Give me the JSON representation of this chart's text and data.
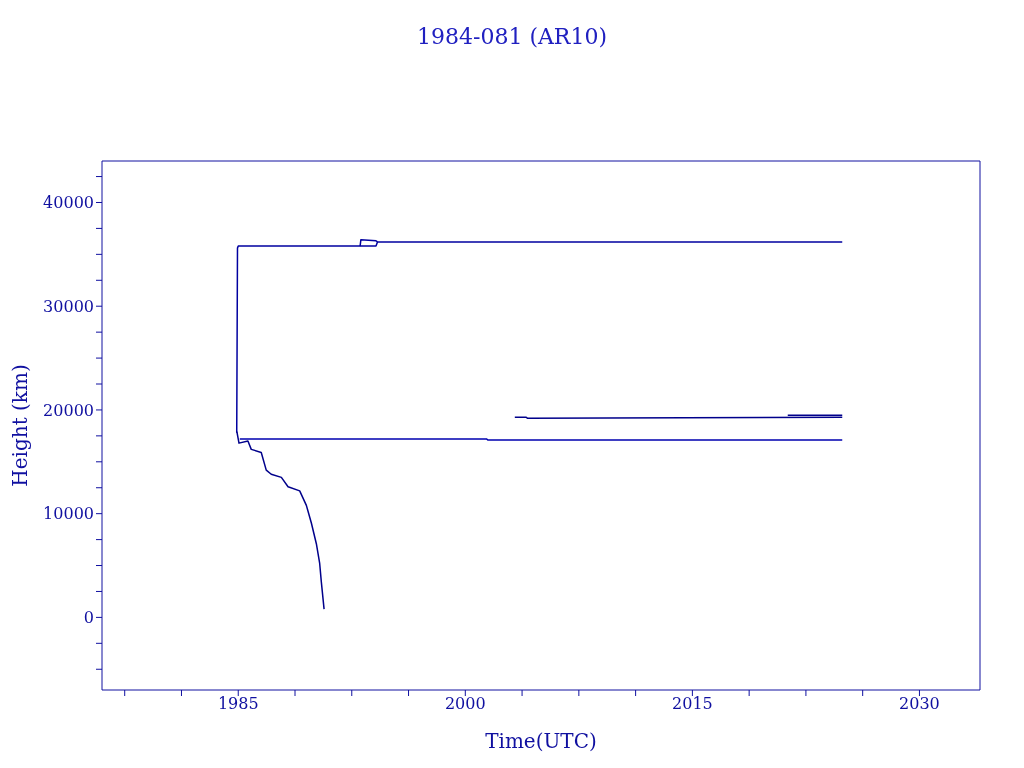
{
  "chart_data": {
    "type": "line",
    "title": "1984-081 (AR10)",
    "xlabel": "Time(UTC)",
    "ylabel": "Height (km)",
    "xlim": [
      1976,
      2034
    ],
    "xticks": [
      {
        "value": 1977.5,
        "label": null
      },
      {
        "value": 1981.25,
        "label": null
      },
      1985,
      {
        "value": 1988.75,
        "label": null
      },
      {
        "value": 1992.5,
        "label": null
      },
      {
        "value": 1996.25,
        "label": null
      },
      2000,
      {
        "value": 2003.75,
        "label": null
      },
      {
        "value": 2007.5,
        "label": null
      },
      {
        "value": 2011.25,
        "label": null
      },
      2015,
      {
        "value": 2018.75,
        "label": null
      },
      {
        "value": 2022.5,
        "label": null
      },
      {
        "value": 2026.25,
        "label": null
      },
      2030
    ],
    "ylim": [
      -7000,
      44000
    ],
    "yticks": [
      {
        "value": -5000,
        "label": null
      },
      {
        "value": -2500,
        "label": null
      },
      0,
      {
        "value": 2500,
        "label": null
      },
      {
        "value": 5000,
        "label": null
      },
      {
        "value": 7500,
        "label": null
      },
      10000,
      {
        "value": 12500,
        "label": null
      },
      {
        "value": 15000,
        "label": null
      },
      {
        "value": 17500,
        "label": null
      },
      20000,
      {
        "value": 22500,
        "label": null
      },
      {
        "value": 25000,
        "label": null
      },
      {
        "value": 27500,
        "label": null
      },
      30000,
      {
        "value": 32500,
        "label": null
      },
      {
        "value": 35000,
        "label": null
      },
      {
        "value": 37500,
        "label": null
      },
      40000,
      {
        "value": 42500,
        "label": null
      }
    ],
    "marker": "none",
    "line_style": "solid",
    "series": [
      {
        "color": "#0000a0",
        "x": [
          1984.9,
          1984.95,
          1985.0,
          1993.1,
          1994.1,
          1994.2,
          2024.9
        ],
        "values": [
          17800,
          35600,
          35800,
          35800,
          35800,
          36200,
          36200
        ]
      },
      {
        "color": "#0000a0",
        "x": [
          1993.05,
          1993.1,
          1994.1,
          1994.2
        ],
        "values": [
          35800,
          36400,
          36300,
          36200
        ]
      },
      {
        "color": "#0000b0",
        "x": [
          1985.1,
          2001.4,
          2001.5,
          2002.2,
          2002.3,
          2024.9
        ],
        "values": [
          17200,
          17200,
          17100,
          17100,
          17100,
          17100
        ]
      },
      {
        "color": "#00008b",
        "x": [
          1984.91,
          1985.05,
          1985.64,
          1985.86,
          1986.52,
          1986.85,
          1987.18,
          1987.85,
          1988.29,
          1989.06,
          1989.5,
          1989.83,
          1990.16,
          1990.38,
          1990.49,
          1990.67
        ],
        "values": [
          17900,
          16800,
          17000,
          16200,
          15900,
          14200,
          13800,
          13500,
          12600,
          12200,
          10800,
          9100,
          7100,
          5200,
          3400,
          800
        ]
      },
      {
        "color": "#00008b",
        "x": [
          2003.27,
          2004.0,
          2004.1,
          2024.9
        ],
        "values": [
          19300,
          19300,
          19200,
          19300
        ]
      },
      {
        "color": "#00008b",
        "x": [
          2021.3,
          2024.9
        ],
        "values": [
          19500,
          19500
        ]
      }
    ]
  }
}
